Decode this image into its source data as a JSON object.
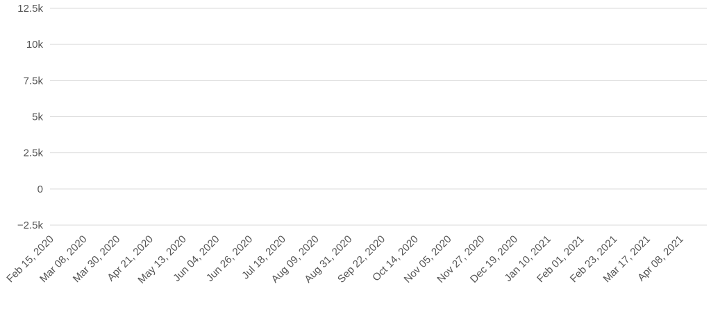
{
  "chart_data": {
    "type": "bar",
    "title": "",
    "xlabel": "",
    "ylabel": "",
    "x_start": "2020-02-15",
    "x_end": "2021-04-26",
    "ylim": [
      -2500,
      12500
    ],
    "grid": true,
    "legend": "none",
    "bar_color": "#8c8c8c",
    "yticks": [
      {
        "value": 12500,
        "label": "12.5k"
      },
      {
        "value": 10000,
        "label": "10k"
      },
      {
        "value": 7500,
        "label": "7.5k"
      },
      {
        "value": 5000,
        "label": "5k"
      },
      {
        "value": 2500,
        "label": "2.5k"
      },
      {
        "value": 0,
        "label": "0"
      },
      {
        "value": -2500,
        "label": "−2.5k"
      }
    ],
    "xticks": [
      {
        "date": "2020-02-15",
        "label": "Feb 15, 2020"
      },
      {
        "date": "2020-03-08",
        "label": "Mar 08, 2020"
      },
      {
        "date": "2020-03-30",
        "label": "Mar 30, 2020"
      },
      {
        "date": "2020-04-21",
        "label": "Apr 21, 2020"
      },
      {
        "date": "2020-05-13",
        "label": "May 13, 2020"
      },
      {
        "date": "2020-06-04",
        "label": "Jun 04, 2020"
      },
      {
        "date": "2020-06-26",
        "label": "Jun 26, 2020"
      },
      {
        "date": "2020-07-18",
        "label": "Jul 18, 2020"
      },
      {
        "date": "2020-08-09",
        "label": "Aug 09, 2020"
      },
      {
        "date": "2020-08-31",
        "label": "Aug 31, 2020"
      },
      {
        "date": "2020-09-22",
        "label": "Sep 22, 2020"
      },
      {
        "date": "2020-10-14",
        "label": "Oct 14, 2020"
      },
      {
        "date": "2020-11-05",
        "label": "Nov 05, 2020"
      },
      {
        "date": "2020-11-27",
        "label": "Nov 27, 2020"
      },
      {
        "date": "2020-12-19",
        "label": "Dec 19, 2020"
      },
      {
        "date": "2021-01-10",
        "label": "Jan 10, 2021"
      },
      {
        "date": "2021-02-01",
        "label": "Feb 01, 2021"
      },
      {
        "date": "2021-02-23",
        "label": "Feb 23, 2021"
      },
      {
        "date": "2021-03-17",
        "label": "Mar 17, 2021"
      },
      {
        "date": "2021-04-08",
        "label": "Apr 08, 2021"
      }
    ],
    "series": [
      {
        "values": [
          0,
          0,
          0,
          0,
          0,
          0,
          0,
          0,
          0,
          0,
          0,
          0,
          0,
          0,
          0,
          0,
          0,
          0,
          0,
          0,
          0,
          0,
          0,
          0,
          0,
          0,
          0,
          0,
          0,
          0,
          0,
          0,
          0,
          0,
          0,
          0,
          0,
          0,
          0,
          0,
          0,
          0,
          0,
          0,
          0,
          0,
          0,
          0,
          0,
          0,
          0,
          0,
          0,
          0,
          0,
          0,
          0,
          0,
          0,
          0,
          0,
          0,
          0,
          0,
          0,
          0,
          0,
          0,
          0,
          0,
          0,
          0,
          0,
          0,
          0,
          0,
          0,
          0,
          0,
          0,
          0,
          0,
          0,
          0,
          0,
          0,
          0,
          0,
          0,
          0,
          0,
          0,
          0,
          0,
          0,
          0,
          0,
          0,
          0,
          0,
          0,
          0,
          0,
          0,
          0,
          0,
          0,
          0,
          0,
          0,
          0,
          0,
          0,
          0,
          0,
          0,
          0,
          0,
          0,
          0,
          0,
          0,
          0,
          0,
          0,
          0,
          0,
          0,
          0,
          0,
          0,
          0,
          0,
          0,
          0,
          0,
          0,
          0,
          0,
          0,
          0,
          0,
          0,
          0,
          0,
          0,
          0,
          0,
          0,
          0,
          0,
          0,
          0,
          0,
          0,
          0,
          0,
          0,
          0,
          0,
          0,
          0,
          0,
          0,
          0,
          0,
          0,
          0,
          0,
          0,
          0,
          0,
          0,
          0,
          0,
          0,
          0,
          0,
          0,
          0,
          0,
          0,
          0,
          0,
          0,
          0,
          0,
          0,
          0,
          0,
          0,
          0,
          0,
          0,
          0,
          0,
          0,
          0,
          0,
          0,
          0,
          0,
          0,
          0,
          0,
          0,
          0,
          0,
          0,
          0,
          0,
          0,
          0,
          0,
          0,
          0,
          0,
          0,
          0,
          0,
          0,
          0,
          0,
          0,
          0,
          0,
          0,
          0,
          0,
          0,
          0,
          0,
          0,
          0,
          0,
          0,
          0,
          0,
          0,
          0,
          0,
          0,
          0,
          0,
          0,
          0,
          0,
          0,
          0,
          0,
          0,
          0,
          0,
          0,
          0,
          0,
          0,
          0,
          0,
          0,
          0,
          0,
          0,
          0,
          0,
          0,
          0,
          0,
          0,
          0,
          0,
          0,
          0,
          0,
          0,
          0,
          0,
          0,
          0,
          0,
          0,
          0,
          0,
          0,
          0,
          0,
          0,
          0,
          0,
          0,
          0,
          0,
          0,
          0,
          0,
          0,
          0,
          0,
          0,
          0,
          0,
          0,
          0,
          0,
          0,
          0,
          0,
          0,
          0,
          0,
          0,
          0,
          0,
          0,
          0,
          0,
          0,
          0,
          0,
          0,
          0,
          0,
          0,
          0,
          0,
          0,
          0,
          0,
          0,
          0,
          0,
          0,
          0,
          0,
          0,
          0,
          0,
          0,
          0,
          0,
          0,
          0,
          0,
          0,
          0,
          0,
          0,
          0,
          0,
          0,
          0,
          0,
          0,
          0,
          0,
          0,
          0,
          0,
          0,
          0,
          0,
          0,
          0,
          0,
          0,
          0,
          0,
          0,
          0,
          0,
          0,
          0,
          0,
          0,
          0,
          0,
          0,
          0,
          0,
          0,
          0,
          0,
          0,
          0,
          0,
          0,
          0,
          0,
          0,
          0,
          0,
          0,
          0,
          0,
          0,
          0,
          0,
          0,
          0,
          0,
          0,
          0,
          0,
          0,
          0,
          0,
          0,
          0,
          0,
          0,
          0,
          0,
          0,
          0,
          0,
          0,
          0,
          0,
          0,
          0,
          0,
          0,
          0,
          0,
          0,
          0,
          0,
          0,
          0,
          0,
          0,
          0,
          0,
          0,
          0,
          0,
          0,
          0,
          0,
          0,
          0,
          0,
          0,
          0,
          0,
          0,
          0,
          0,
          0,
          0,
          0,
          0,
          0,
          0,
          0,
          0,
          0,
          0,
          0,
          0,
          0,
          0,
          0,
          0,
          0,
          0,
          0,
          0,
          0,
          0,
          0,
          0,
          0,
          0,
          0,
          0,
          0,
          0,
          0,
          0,
          0,
          0,
          0,
          0,
          0,
          0
        ]
      }
    ],
    "series_note": ""
  }
}
